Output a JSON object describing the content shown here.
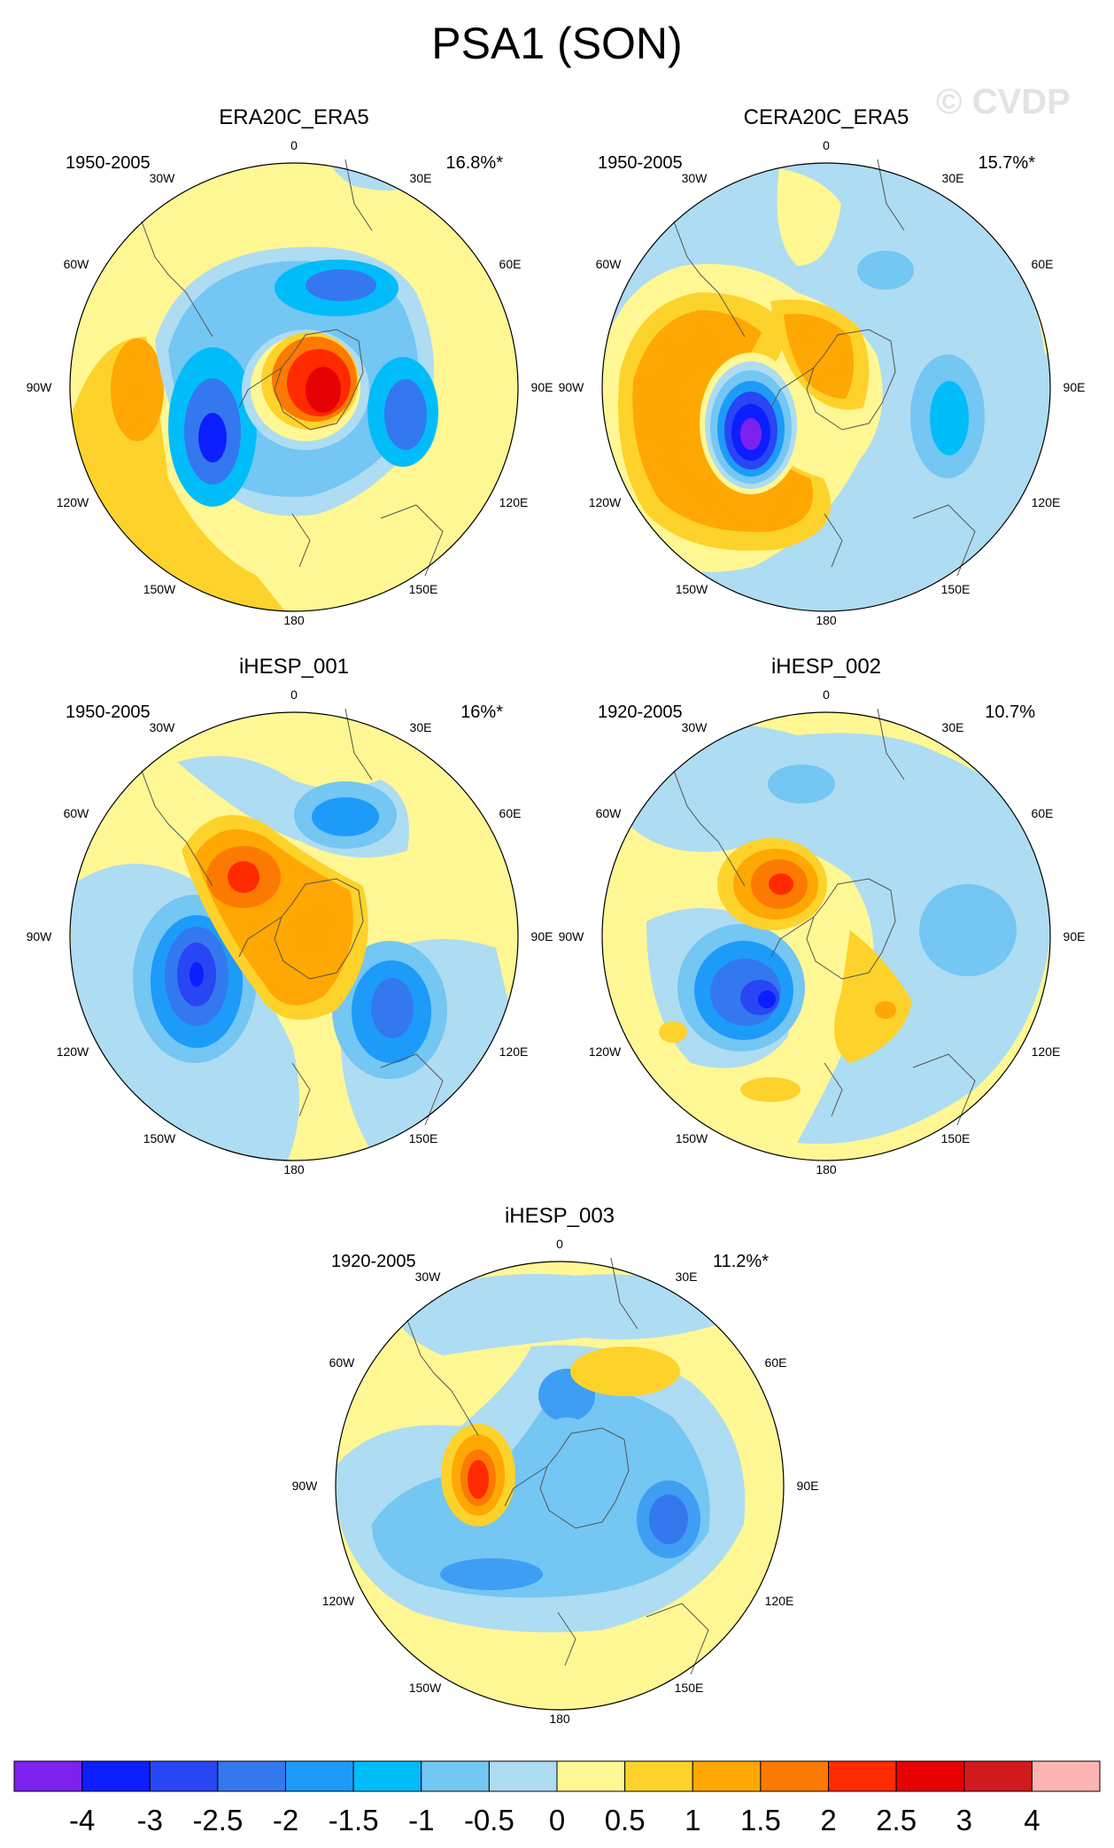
{
  "title": "PSA1 (SON)",
  "watermark": "© CVDP",
  "longitude_labels": [
    "0",
    "30E",
    "60E",
    "90E",
    "120E",
    "150E",
    "180",
    "150W",
    "120W",
    "90W",
    "60W",
    "30W"
  ],
  "panels": [
    {
      "name": "ERA20C_ERA5",
      "years": "1950-2005",
      "variance": "16.8%*",
      "background": "#fff794",
      "features": [
        {
          "level": -1.5,
          "fill": "#00b4ff"
        },
        {
          "level": -3,
          "fill": "#0d1eff"
        },
        {
          "level": 1,
          "fill": "#fdcb2a"
        },
        {
          "level": 2.5,
          "fill": "#ff2a00"
        }
      ]
    },
    {
      "name": "CERA20C_ERA5",
      "years": "1950-2005",
      "variance": "15.7%*",
      "background": "#aedcf2",
      "features": [
        {
          "level": -4,
          "fill": "#7d22ee"
        },
        {
          "level": -1.5,
          "fill": "#00b4ff"
        },
        {
          "level": 1.5,
          "fill": "#ffa703"
        },
        {
          "level": 0.5,
          "fill": "#fff794"
        }
      ]
    },
    {
      "name": "iHESP_001",
      "years": "1950-2005",
      "variance": "16%*",
      "background": "#fff794",
      "features": [
        {
          "level": -3,
          "fill": "#0d1eff"
        },
        {
          "level": -2,
          "fill": "#3478f0"
        },
        {
          "level": 1.5,
          "fill": "#ffa703"
        },
        {
          "level": 2.5,
          "fill": "#ff2a00"
        }
      ]
    },
    {
      "name": "iHESP_002",
      "years": "1920-2005",
      "variance": "10.7%",
      "background": "#fff794",
      "features": [
        {
          "level": -3,
          "fill": "#0d1eff"
        },
        {
          "level": -1,
          "fill": "#74c6f3"
        },
        {
          "level": 1.5,
          "fill": "#ffa703"
        },
        {
          "level": 2.5,
          "fill": "#ff2a00"
        }
      ]
    },
    {
      "name": "iHESP_003",
      "years": "1920-2005",
      "variance": "11.2%*",
      "background": "#fff794",
      "features": [
        {
          "level": -1.5,
          "fill": "#3e9ef3"
        },
        {
          "level": -1,
          "fill": "#74c6f3"
        },
        {
          "level": 1,
          "fill": "#fdcb2a"
        },
        {
          "level": 2.5,
          "fill": "#ff2a00"
        }
      ]
    }
  ],
  "colorbar": {
    "colors": [
      "#7d22ee",
      "#0d1eff",
      "#2846f4",
      "#3478f0",
      "#1d9bf9",
      "#00bdfa",
      "#74c6f3",
      "#aedcf2",
      "#fff794",
      "#fdd22a",
      "#ffa703",
      "#fd7a02",
      "#ff2a00",
      "#e60202",
      "#d21a1e",
      "#ffb4b4"
    ],
    "labels": [
      "-4",
      "-3",
      "-2.5",
      "-2",
      "-1.5",
      "-1",
      "-0.5",
      "0",
      "0.5",
      "1",
      "1.5",
      "2",
      "2.5",
      "3",
      "4"
    ]
  }
}
